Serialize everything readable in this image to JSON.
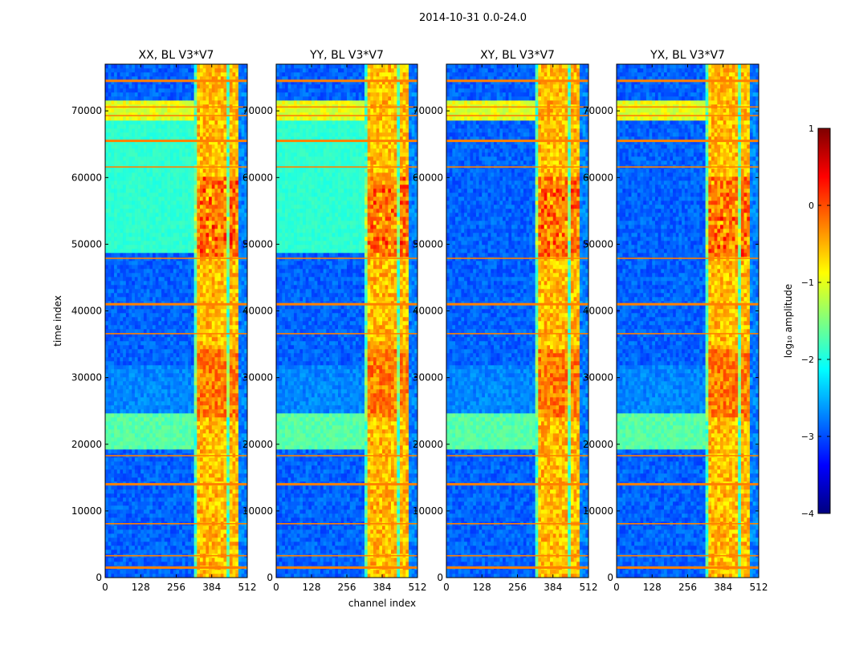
{
  "figure": {
    "suptitle": "2014-10-31 0.0-24.0",
    "xlabel": "channel index",
    "ylabel": "time index"
  },
  "chart_data": {
    "type": "heatmap",
    "x_range": [
      0,
      512
    ],
    "y_range": [
      0,
      77000
    ],
    "x_ticks": [
      0,
      128,
      256,
      384,
      512
    ],
    "y_ticks": [
      0,
      10000,
      20000,
      30000,
      40000,
      50000,
      60000,
      70000
    ],
    "panels": [
      {
        "title": "XX, BL V3*V7",
        "pol": "XX"
      },
      {
        "title": "YY, BL V3*V7",
        "pol": "YY"
      },
      {
        "title": "XY, BL V3*V7",
        "pol": "XY"
      },
      {
        "title": "YX, BL V3*V7",
        "pol": "YX"
      }
    ],
    "colorbar": {
      "label": "log₁₀ amplitude",
      "range": [
        -4,
        1
      ],
      "ticks": [
        1,
        0,
        -1,
        -2,
        -3,
        -4
      ],
      "tick_labels": [
        "1",
        "0",
        "−1",
        "−2",
        "−3",
        "−4"
      ],
      "colormap": "jet",
      "colors": [
        "#00007f",
        "#0000ff",
        "#007fff",
        "#00ffff",
        "#7fff7f",
        "#ffff00",
        "#ff7f00",
        "#ff0000",
        "#7f0000"
      ]
    },
    "rfi_channel_band": [
      322,
      480
    ],
    "flagged_time_rows": [
      1500,
      3200,
      8000,
      14000,
      18200,
      36500,
      41000,
      47800,
      61500,
      65500,
      69200,
      70500,
      74500
    ]
  }
}
